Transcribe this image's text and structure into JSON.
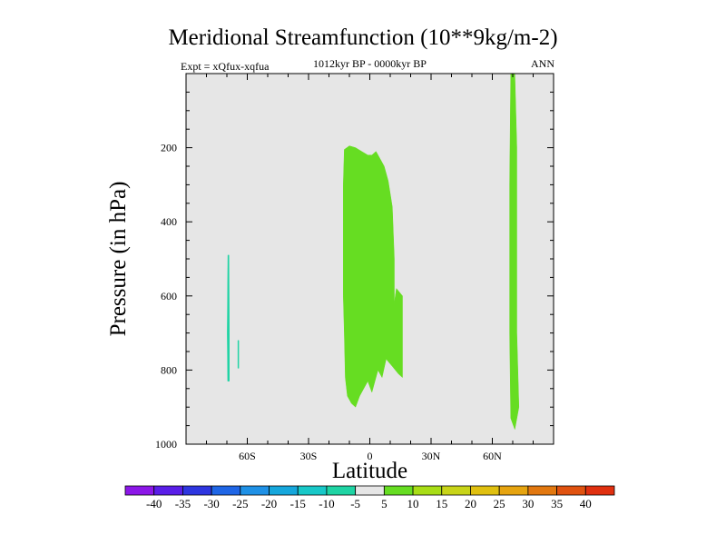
{
  "chart_data": {
    "type": "contour",
    "title": "Meridional Streamfunction (10**9kg/m-2)",
    "subtitle": "1012kyr BP - 0000kyr BP",
    "left_label": "Expt = xQfux-xqfua",
    "right_label": "ANN",
    "xlabel": "Latitude",
    "ylabel": "Pressure (in hPa)",
    "xlim": [
      -90,
      90
    ],
    "ylim": [
      1000,
      0
    ],
    "x_ticks": [
      {
        "value": -60,
        "label": "60S"
      },
      {
        "value": -30,
        "label": "30S"
      },
      {
        "value": 0,
        "label": "0"
      },
      {
        "value": 30,
        "label": "30N"
      },
      {
        "value": 60,
        "label": "60N"
      }
    ],
    "y_ticks": [
      {
        "value": 200,
        "label": "200"
      },
      {
        "value": 400,
        "label": "400"
      },
      {
        "value": 600,
        "label": "600"
      },
      {
        "value": 800,
        "label": "800"
      },
      {
        "value": 1000,
        "label": "1000"
      }
    ],
    "background_color": "#e6e6e6",
    "regions": [
      {
        "name": "tropical-positive-cell",
        "level": "5 to 10",
        "color": "#66dd22",
        "points": [
          [
            -12.5,
            205
          ],
          [
            -10,
            195
          ],
          [
            -7,
            200
          ],
          [
            -4,
            210
          ],
          [
            -1,
            220
          ],
          [
            1,
            220
          ],
          [
            3,
            210
          ],
          [
            5,
            230
          ],
          [
            7,
            250
          ],
          [
            9,
            290
          ],
          [
            11,
            360
          ],
          [
            12,
            500
          ],
          [
            12,
            620
          ],
          [
            13,
            580
          ],
          [
            16,
            600
          ],
          [
            16,
            820
          ],
          [
            14,
            810
          ],
          [
            11,
            790
          ],
          [
            8,
            770
          ],
          [
            6,
            820
          ],
          [
            4,
            800
          ],
          [
            1,
            860
          ],
          [
            -1,
            830
          ],
          [
            -5,
            870
          ],
          [
            -7,
            900
          ],
          [
            -9,
            890
          ],
          [
            -11,
            870
          ],
          [
            -12,
            820
          ],
          [
            -12.5,
            700
          ],
          [
            -13,
            600
          ],
          [
            -13,
            400
          ],
          [
            -13,
            300
          ]
        ]
      },
      {
        "name": "northern-positive-band",
        "level": "5 to 10",
        "color": "#66dd22",
        "points": [
          [
            69,
            0
          ],
          [
            71,
            0
          ],
          [
            72,
            200
          ],
          [
            72,
            700
          ],
          [
            73,
            900
          ],
          [
            71,
            960
          ],
          [
            69,
            930
          ],
          [
            68.5,
            700
          ],
          [
            68.5,
            300
          ]
        ]
      },
      {
        "name": "southern-negative-sliver",
        "level": "-10 to -5",
        "color": "#1fd4a4",
        "points": [
          [
            -69.5,
            490
          ],
          [
            -69,
            490
          ],
          [
            -68.8,
            700
          ],
          [
            -68.8,
            830
          ],
          [
            -69.6,
            830
          ],
          [
            -69.8,
            700
          ]
        ]
      },
      {
        "name": "southern-negative-tick",
        "level": "-10 to -5",
        "color": "#1fd4a4",
        "points": [
          [
            -64.6,
            720
          ],
          [
            -64.2,
            720
          ],
          [
            -64.2,
            795
          ],
          [
            -64.6,
            795
          ]
        ]
      }
    ],
    "colorbar": {
      "labels": [
        "-40",
        "-35",
        "-30",
        "-25",
        "-20",
        "-15",
        "-10",
        "-5",
        "5",
        "10",
        "15",
        "20",
        "25",
        "30",
        "35",
        "40"
      ],
      "colors": [
        "#8c17e8",
        "#5a1ee8",
        "#2e36e0",
        "#1f66e6",
        "#1f91e6",
        "#16a7dc",
        "#18c8c8",
        "#1fd4a4",
        "#e6e6e6",
        "#66dd22",
        "#a8dd16",
        "#c8d418",
        "#e0c010",
        "#e6a410",
        "#e27810",
        "#e05210",
        "#e03010"
      ]
    }
  }
}
